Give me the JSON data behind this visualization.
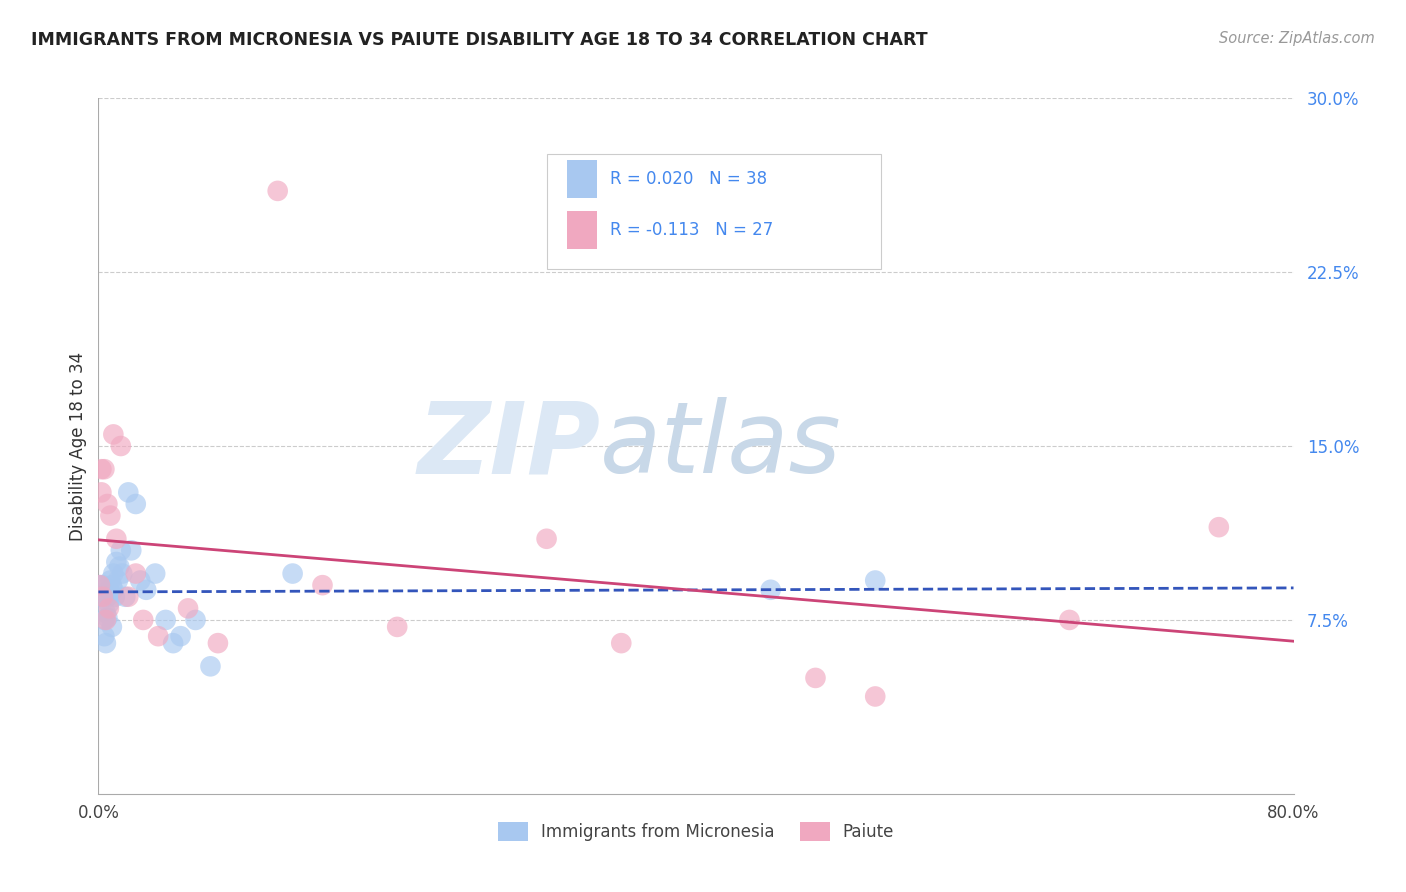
{
  "title": "IMMIGRANTS FROM MICRONESIA VS PAIUTE DISABILITY AGE 18 TO 34 CORRELATION CHART",
  "source": "Source: ZipAtlas.com",
  "ylabel": "Disability Age 18 to 34",
  "legend_label1": "Immigrants from Micronesia",
  "legend_label2": "Paiute",
  "R1": 0.02,
  "N1": 38,
  "R2": -0.113,
  "N2": 27,
  "xlim": [
    0.0,
    0.8
  ],
  "ylim": [
    0.0,
    0.3
  ],
  "yticks": [
    0.075,
    0.15,
    0.225,
    0.3
  ],
  "ytick_labels": [
    "7.5%",
    "15.0%",
    "22.5%",
    "30.0%"
  ],
  "xticks": [
    0.0,
    0.16,
    0.32,
    0.48,
    0.64,
    0.8
  ],
  "xtick_labels": [
    "0.0%",
    "",
    "",
    "",
    "",
    "80.0%"
  ],
  "color1": "#a8c8f0",
  "color2": "#f0a8c0",
  "line_color1": "#3355bb",
  "line_color2": "#cc4477",
  "background": "#ffffff",
  "grid_color": "#cccccc",
  "watermark_zip": "ZIP",
  "watermark_atlas": "atlas",
  "micronesia_x": [
    0.001,
    0.002,
    0.003,
    0.004,
    0.004,
    0.005,
    0.005,
    0.006,
    0.006,
    0.007,
    0.007,
    0.008,
    0.008,
    0.009,
    0.009,
    0.01,
    0.01,
    0.011,
    0.012,
    0.013,
    0.014,
    0.015,
    0.016,
    0.018,
    0.02,
    0.022,
    0.025,
    0.028,
    0.032,
    0.038,
    0.045,
    0.05,
    0.055,
    0.065,
    0.075,
    0.13,
    0.45,
    0.52
  ],
  "micronesia_y": [
    0.09,
    0.085,
    0.09,
    0.075,
    0.068,
    0.078,
    0.065,
    0.085,
    0.076,
    0.088,
    0.082,
    0.092,
    0.086,
    0.09,
    0.072,
    0.095,
    0.088,
    0.085,
    0.1,
    0.092,
    0.098,
    0.105,
    0.095,
    0.085,
    0.13,
    0.105,
    0.125,
    0.092,
    0.088,
    0.095,
    0.075,
    0.065,
    0.068,
    0.075,
    0.055,
    0.095,
    0.088,
    0.092
  ],
  "paiute_x": [
    0.001,
    0.002,
    0.002,
    0.003,
    0.004,
    0.005,
    0.006,
    0.007,
    0.008,
    0.01,
    0.012,
    0.015,
    0.02,
    0.025,
    0.03,
    0.04,
    0.06,
    0.08,
    0.12,
    0.15,
    0.2,
    0.3,
    0.35,
    0.48,
    0.52,
    0.65,
    0.75
  ],
  "paiute_y": [
    0.09,
    0.14,
    0.13,
    0.085,
    0.14,
    0.075,
    0.125,
    0.08,
    0.12,
    0.155,
    0.11,
    0.15,
    0.085,
    0.095,
    0.075,
    0.068,
    0.08,
    0.065,
    0.26,
    0.09,
    0.072,
    0.11,
    0.065,
    0.05,
    0.042,
    0.075,
    0.115
  ]
}
